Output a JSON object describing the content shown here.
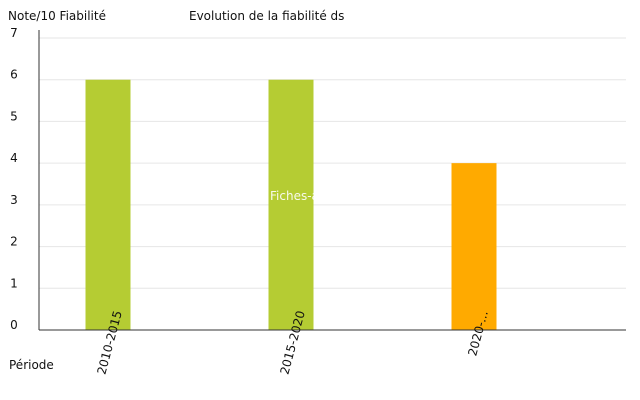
{
  "chart_data": {
    "type": "bar",
    "title": "Evolution de la fiabilité ds",
    "ylabel": "Note/10 Fiabilité",
    "xlabel": "Période",
    "watermark": "Fiches-auto.fr",
    "categories": [
      "2010-2015",
      "2015-2020",
      "2020-..."
    ],
    "values": [
      6,
      6,
      4
    ],
    "bar_colors": [
      "#b5cc33",
      "#b5cc33",
      "#ffaa00"
    ],
    "ylim": [
      0,
      7
    ],
    "yticks": [
      0,
      1,
      2,
      3,
      4,
      5,
      6,
      7
    ],
    "grid": true,
    "legend": false
  },
  "colors": {
    "axis": "#333333",
    "grid": "#e6e6e6",
    "text": "#111111",
    "watermark": "#ffffff"
  }
}
